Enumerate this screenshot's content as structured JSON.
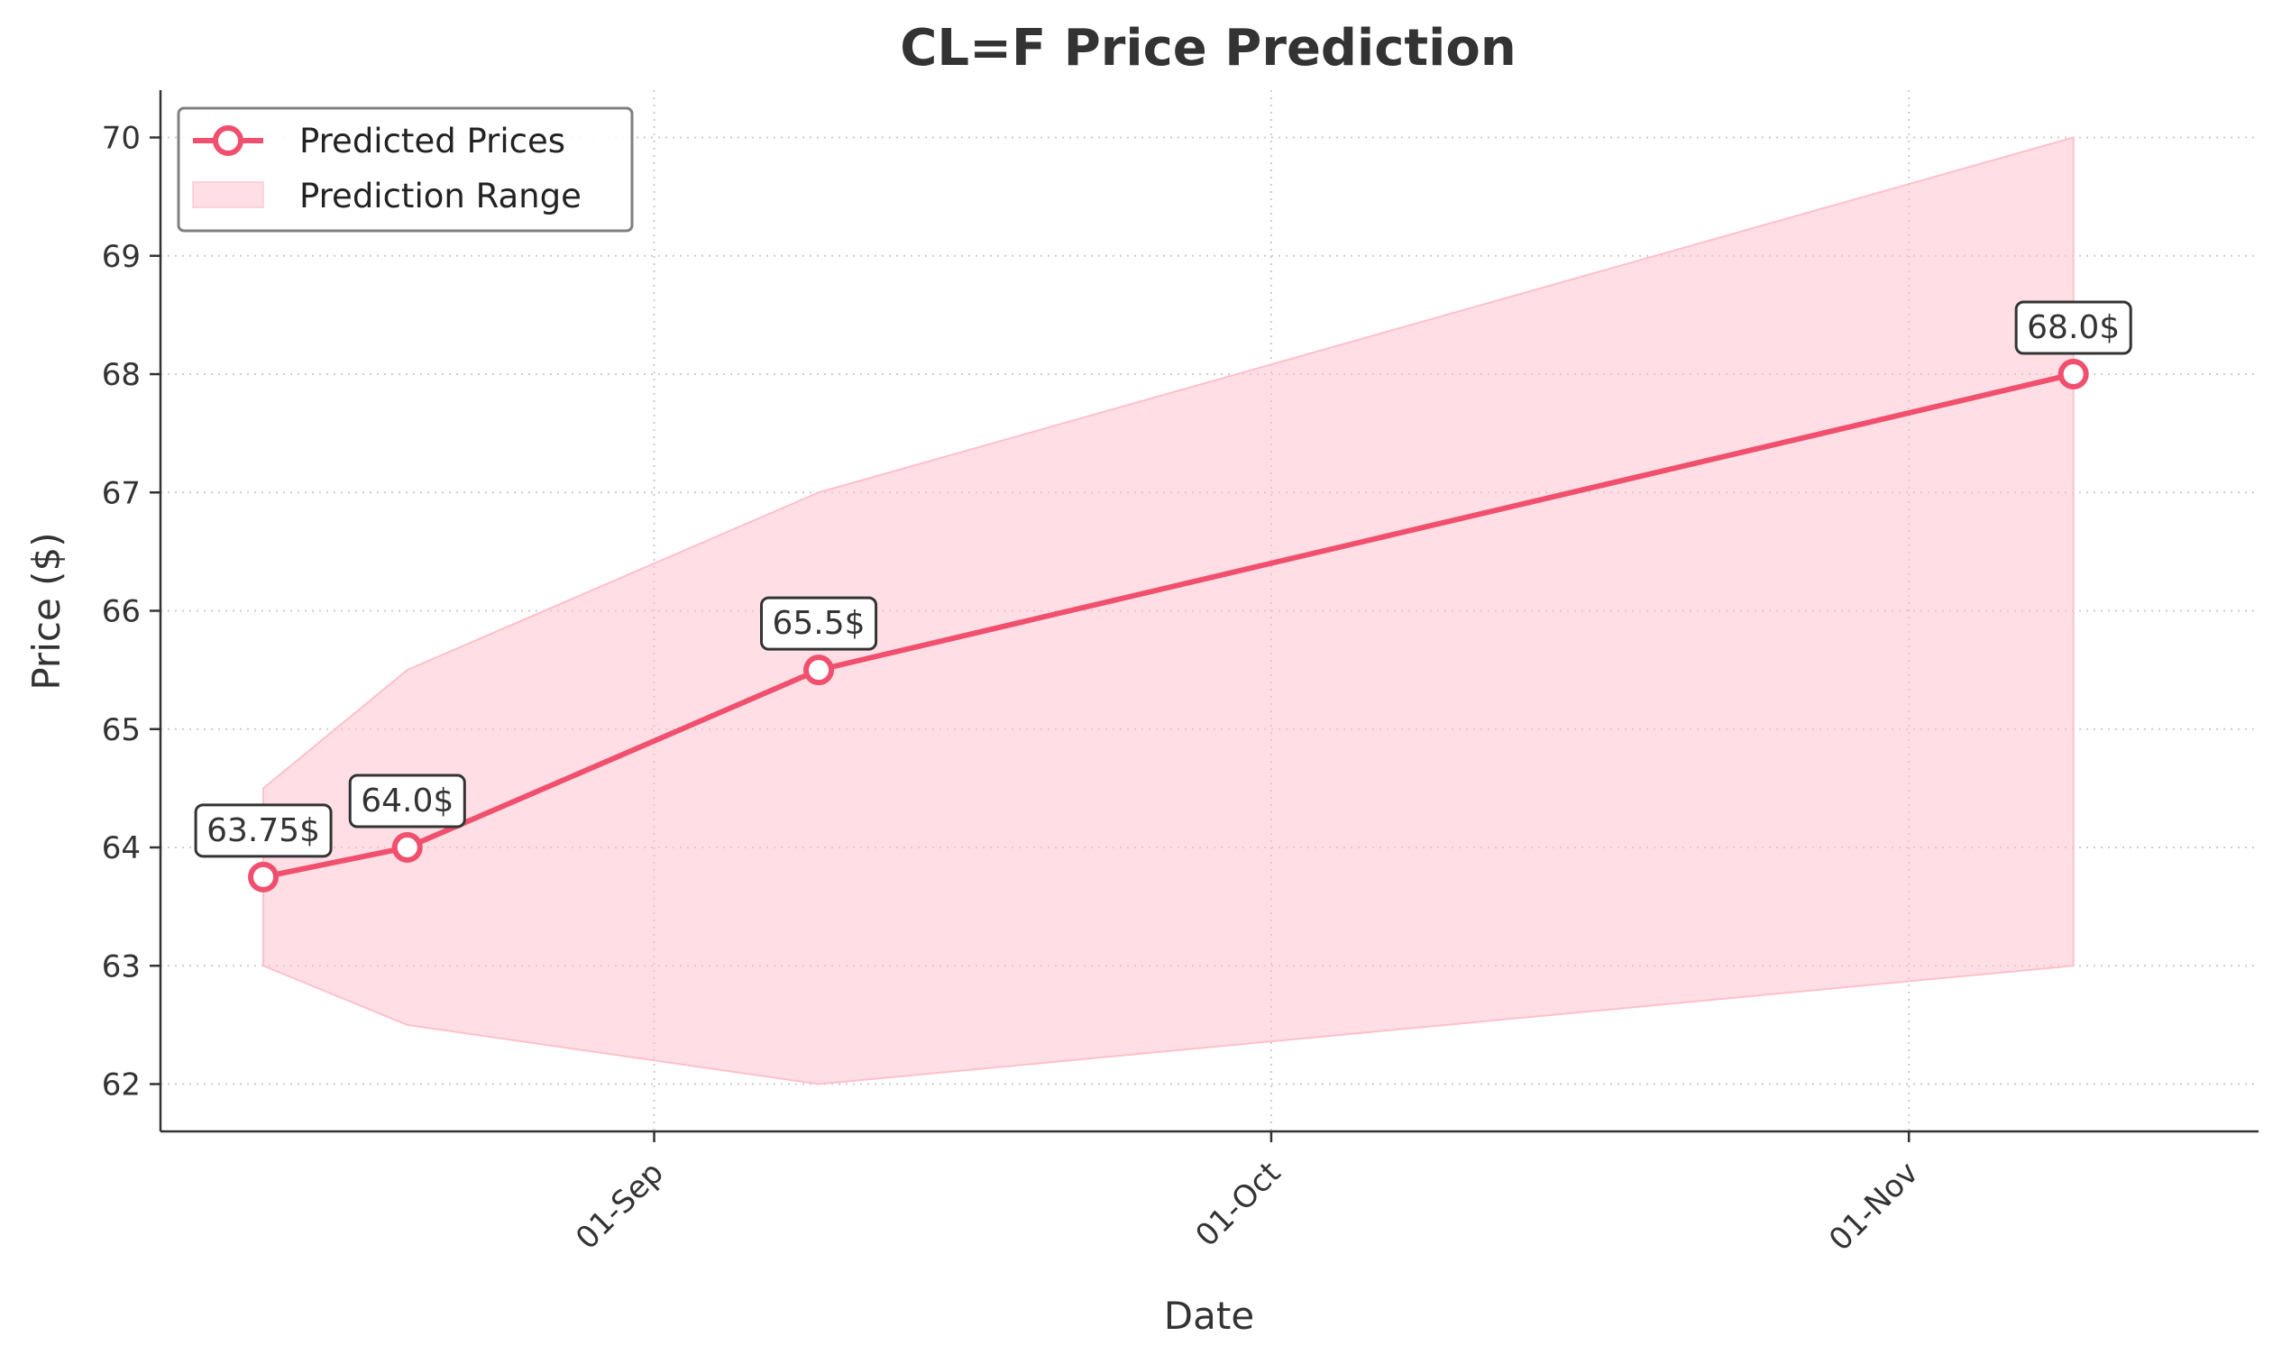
{
  "chart_data": {
    "type": "line",
    "title": "CL=F Price Prediction",
    "xlabel": "Date",
    "ylabel": "Price ($)",
    "x": [
      "2024-08-13",
      "2024-08-20",
      "2024-09-09",
      "2024-11-09"
    ],
    "xlim": [
      "2024-08-08",
      "2024-11-18"
    ],
    "ylim": [
      61.6,
      70.4
    ],
    "yticks": [
      62,
      63,
      64,
      65,
      66,
      67,
      68,
      69,
      70
    ],
    "xticks": [
      {
        "date": "2024-09-01",
        "label": "01-Sep"
      },
      {
        "date": "2024-10-01",
        "label": "01-Oct"
      },
      {
        "date": "2024-11-01",
        "label": "01-Nov"
      }
    ],
    "series": [
      {
        "name": "Predicted Prices",
        "values": [
          63.75,
          64.0,
          65.5,
          68.0
        ],
        "color": "#f0506e"
      }
    ],
    "range": {
      "name": "Prediction Range",
      "lower": [
        63.0,
        62.5,
        62.0,
        63.0
      ],
      "upper": [
        64.5,
        65.5,
        67.0,
        70.0
      ],
      "color": "#ffc0cb"
    },
    "annotations": [
      "63.75$",
      "64.0$",
      "65.5$",
      "68.0$"
    ],
    "grid": true,
    "legend_position": "top-left"
  }
}
